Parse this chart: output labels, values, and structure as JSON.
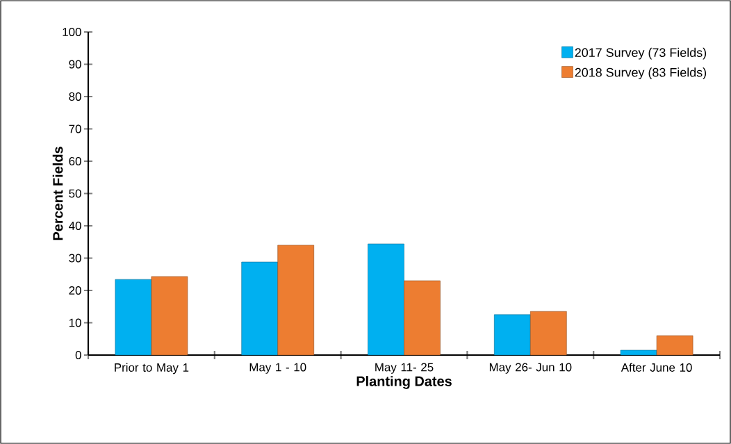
{
  "chart_data": {
    "type": "bar",
    "xlabel": "Planting Dates",
    "ylabel": "Percent Fields",
    "categories": [
      "Prior to May 1",
      "May 1 - 10",
      "May 11- 25",
      "May 26- Jun 10",
      "After June 10"
    ],
    "series": [
      {
        "name": "2017 Survey (73 Fields)",
        "color": "#00b0f0",
        "values": [
          23.4,
          28.8,
          34.4,
          12.5,
          1.5
        ]
      },
      {
        "name": "2018 Survey (83 Fields)",
        "color": "#ed7d31",
        "values": [
          24.3,
          34.0,
          23.0,
          13.5,
          6.0
        ]
      }
    ],
    "ylim": [
      0,
      100
    ],
    "yticks": [
      0,
      10,
      20,
      30,
      40,
      50,
      60,
      70,
      80,
      90,
      100
    ],
    "grid": false,
    "legend": "top right"
  }
}
